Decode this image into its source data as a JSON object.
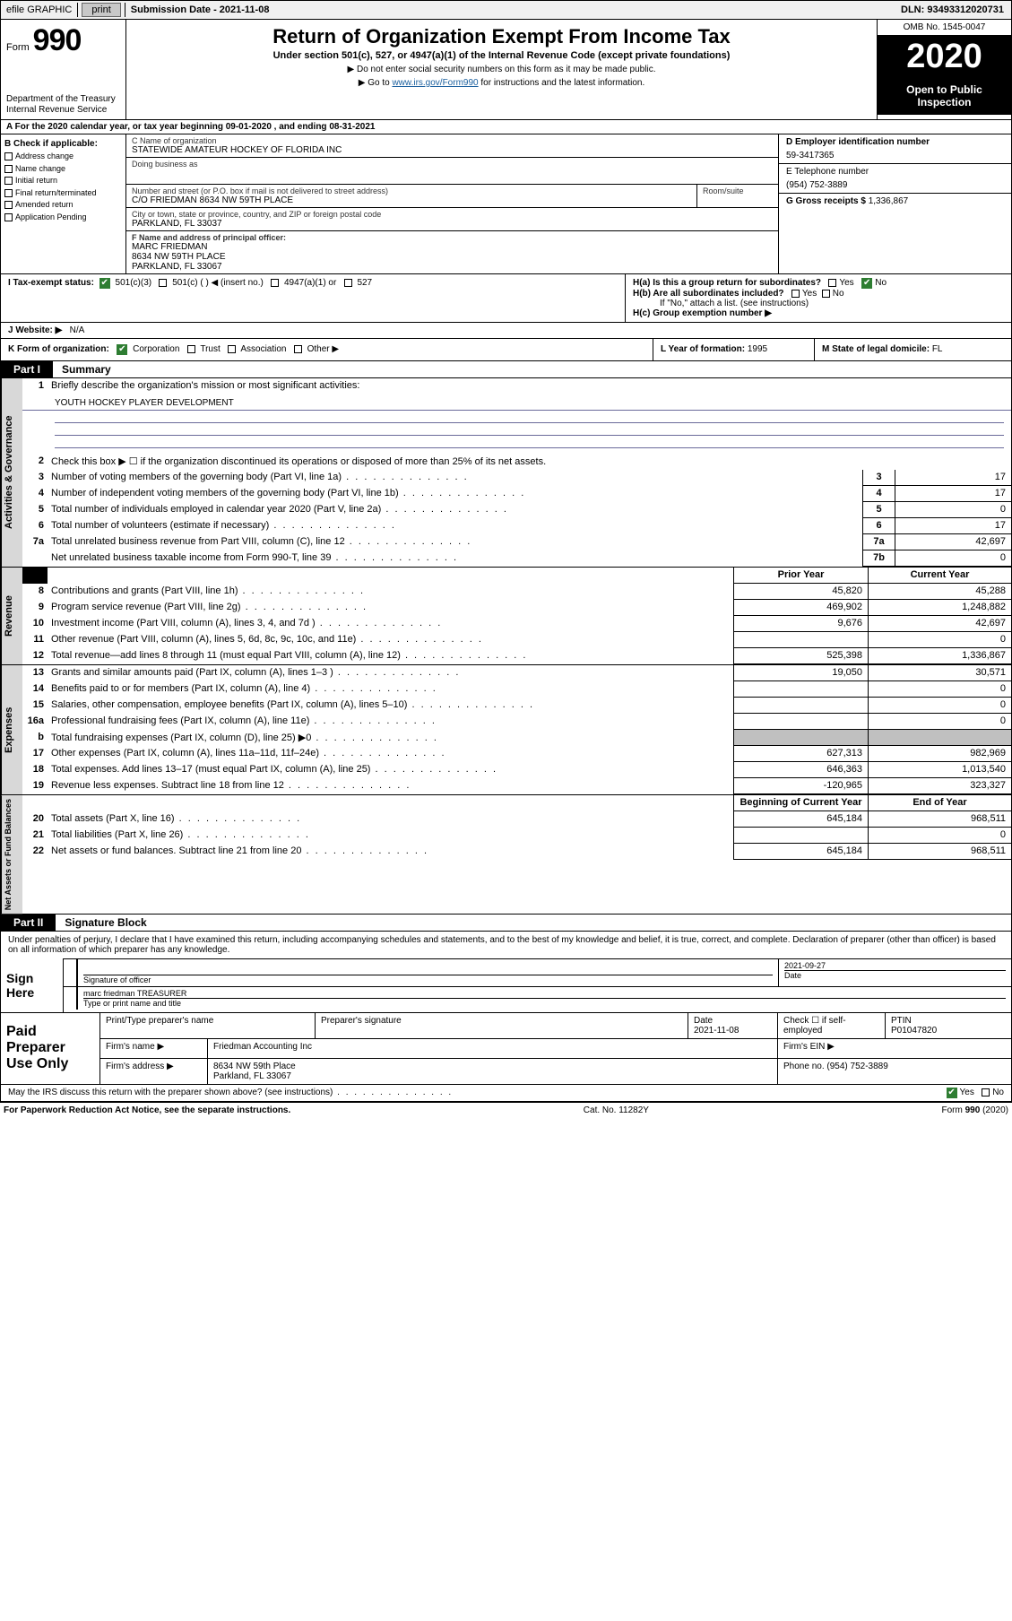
{
  "colors": {
    "black": "#000000",
    "link": "#1a5f9e",
    "green_check": "#2e7d32",
    "shade": "#c0c0c0",
    "vtab_bg": "#d8d8d8"
  },
  "topbar": {
    "efile": "efile GRAPHIC",
    "print": "print",
    "subdate_label": "Submission Date - 2021-11-08",
    "dln": "DLN: 93493312020731"
  },
  "header": {
    "form_word": "Form",
    "form_num": "990",
    "dept": "Department of the Treasury\nInternal Revenue Service",
    "title": "Return of Organization Exempt From Income Tax",
    "sub": "Under section 501(c), 527, or 4947(a)(1) of the Internal Revenue Code (except private foundations)",
    "note1": "▶ Do not enter social security numbers on this form as it may be made public.",
    "note2_pre": "▶ Go to ",
    "note2_link": "www.irs.gov/Form990",
    "note2_post": " for instructions and the latest information.",
    "omb": "OMB No. 1545-0047",
    "year": "2020",
    "open": "Open to Public Inspection"
  },
  "row_a": "A For the 2020 calendar year, or tax year beginning 09-01-2020   , and ending 08-31-2021",
  "box_b": {
    "label": "B Check if applicable:",
    "items": [
      "Address change",
      "Name change",
      "Initial return",
      "Final return/terminated",
      "Amended return",
      "Application Pending"
    ]
  },
  "box_c": {
    "c_label": "C Name of organization",
    "c_name": "STATEWIDE AMATEUR HOCKEY OF FLORIDA INC",
    "dba_label": "Doing business as",
    "dba": "",
    "street_label": "Number and street (or P.O. box if mail is not delivered to street address)",
    "room_label": "Room/suite",
    "street": "C/O FRIEDMAN 8634 NW 59TH PLACE",
    "city_label": "City or town, state or province, country, and ZIP or foreign postal code",
    "city": "PARKLAND, FL  33037",
    "f_label": "F Name and address of principal officer:",
    "f_name": "MARC FRIEDMAN",
    "f_addr1": "8634 NW 59TH PLACE",
    "f_addr2": "PARKLAND, FL  33067"
  },
  "box_de": {
    "d_label": "D Employer identification number",
    "ein": "59-3417365",
    "e_label": "E Telephone number",
    "phone": "(954) 752-3889",
    "g_label": "G Gross receipts $",
    "g_val": "1,336,867"
  },
  "box_h": {
    "ha": "H(a)  Is this a group return for subordinates?",
    "hb": "H(b)  Are all subordinates included?",
    "hb_note": "If \"No,\" attach a list. (see instructions)",
    "hc": "H(c)  Group exemption number ▶",
    "yes": "Yes",
    "no": "No"
  },
  "row_i": {
    "label": "I   Tax-exempt status:",
    "opts": [
      "501(c)(3)",
      "501(c) (  ) ◀ (insert no.)",
      "4947(a)(1) or",
      "527"
    ]
  },
  "row_j": {
    "label": "J   Website: ▶",
    "val": "N/A"
  },
  "row_k": {
    "label": "K Form of organization:",
    "opts": [
      "Corporation",
      "Trust",
      "Association",
      "Other ▶"
    ]
  },
  "row_l": {
    "label": "L Year of formation:",
    "val": "1995"
  },
  "row_m": {
    "label": "M State of legal domicile:",
    "val": "FL"
  },
  "part1": {
    "tab": "Part I",
    "title": "Summary"
  },
  "summary": {
    "q1": "Briefly describe the organization's mission or most significant activities:",
    "mission": "YOUTH HOCKEY PLAYER DEVELOPMENT",
    "q2": "Check this box ▶ ☐  if the organization discontinued its operations or disposed of more than 25% of its net assets.",
    "lines_single": [
      {
        "n": "3",
        "d": "Number of voting members of the governing body (Part VI, line 1a)",
        "rn": "3",
        "v": "17"
      },
      {
        "n": "4",
        "d": "Number of independent voting members of the governing body (Part VI, line 1b)",
        "rn": "4",
        "v": "17"
      },
      {
        "n": "5",
        "d": "Total number of individuals employed in calendar year 2020 (Part V, line 2a)",
        "rn": "5",
        "v": "0"
      },
      {
        "n": "6",
        "d": "Total number of volunteers (estimate if necessary)",
        "rn": "6",
        "v": "17"
      },
      {
        "n": "7a",
        "d": "Total unrelated business revenue from Part VIII, column (C), line 12",
        "rn": "7a",
        "v": "42,697"
      },
      {
        "n": "",
        "d": "Net unrelated business taxable income from Form 990-T, line 39",
        "rn": "7b",
        "v": "0"
      }
    ],
    "hdr_prior": "Prior Year",
    "hdr_cur": "Current Year",
    "revenue": [
      {
        "n": "8",
        "d": "Contributions and grants (Part VIII, line 1h)",
        "p": "45,820",
        "c": "45,288"
      },
      {
        "n": "9",
        "d": "Program service revenue (Part VIII, line 2g)",
        "p": "469,902",
        "c": "1,248,882"
      },
      {
        "n": "10",
        "d": "Investment income (Part VIII, column (A), lines 3, 4, and 7d )",
        "p": "9,676",
        "c": "42,697"
      },
      {
        "n": "11",
        "d": "Other revenue (Part VIII, column (A), lines 5, 6d, 8c, 9c, 10c, and 11e)",
        "p": "",
        "c": "0"
      },
      {
        "n": "12",
        "d": "Total revenue—add lines 8 through 11 (must equal Part VIII, column (A), line 12)",
        "p": "525,398",
        "c": "1,336,867"
      }
    ],
    "expenses": [
      {
        "n": "13",
        "d": "Grants and similar amounts paid (Part IX, column (A), lines 1–3 )",
        "p": "19,050",
        "c": "30,571"
      },
      {
        "n": "14",
        "d": "Benefits paid to or for members (Part IX, column (A), line 4)",
        "p": "",
        "c": "0"
      },
      {
        "n": "15",
        "d": "Salaries, other compensation, employee benefits (Part IX, column (A), lines 5–10)",
        "p": "",
        "c": "0"
      },
      {
        "n": "16a",
        "d": "Professional fundraising fees (Part IX, column (A), line 11e)",
        "p": "",
        "c": "0"
      },
      {
        "n": "b",
        "d": "Total fundraising expenses (Part IX, column (D), line 25) ▶0",
        "p": "SHADE",
        "c": "SHADE"
      },
      {
        "n": "17",
        "d": "Other expenses (Part IX, column (A), lines 11a–11d, 11f–24e)",
        "p": "627,313",
        "c": "982,969"
      },
      {
        "n": "18",
        "d": "Total expenses. Add lines 13–17 (must equal Part IX, column (A), line 25)",
        "p": "646,363",
        "c": "1,013,540"
      },
      {
        "n": "19",
        "d": "Revenue less expenses. Subtract line 18 from line 12",
        "p": "-120,965",
        "c": "323,327"
      }
    ],
    "hdr_beg": "Beginning of Current Year",
    "hdr_end": "End of Year",
    "netassets": [
      {
        "n": "20",
        "d": "Total assets (Part X, line 16)",
        "p": "645,184",
        "c": "968,511"
      },
      {
        "n": "21",
        "d": "Total liabilities (Part X, line 26)",
        "p": "",
        "c": "0"
      },
      {
        "n": "22",
        "d": "Net assets or fund balances. Subtract line 21 from line 20",
        "p": "645,184",
        "c": "968,511"
      }
    ]
  },
  "part2": {
    "tab": "Part II",
    "title": "Signature Block"
  },
  "sig": {
    "penalty": "Under penalties of perjury, I declare that I have examined this return, including accompanying schedules and statements, and to the best of my knowledge and belief, it is true, correct, and complete. Declaration of preparer (other than officer) is based on all information of which preparer has any knowledge.",
    "sign_here": "Sign Here",
    "sig_officer": "Signature of officer",
    "date_label": "Date",
    "date": "2021-09-27",
    "name_title": "marc friedman TREASURER",
    "type_label": "Type or print name and title"
  },
  "paid": {
    "label": "Paid Preparer Use Only",
    "h_name": "Print/Type preparer's name",
    "h_sig": "Preparer's signature",
    "h_date": "Date",
    "date": "2021-11-08",
    "h_check": "Check ☐ if self-employed",
    "h_ptin": "PTIN",
    "ptin": "P01047820",
    "firm_name_l": "Firm's name    ▶",
    "firm_name": "Friedman Accounting Inc",
    "firm_ein_l": "Firm's EIN ▶",
    "firm_addr_l": "Firm's address ▶",
    "firm_addr1": "8634 NW 59th Place",
    "firm_addr2": "Parkland, FL  33067",
    "phone_l": "Phone no.",
    "phone": "(954) 752-3889"
  },
  "discuss": {
    "q": "May the IRS discuss this return with the preparer shown above? (see instructions)",
    "yes": "Yes",
    "no": "No"
  },
  "footer": {
    "left": "For Paperwork Reduction Act Notice, see the separate instructions.",
    "mid": "Cat. No. 11282Y",
    "right": "Form 990 (2020)"
  }
}
